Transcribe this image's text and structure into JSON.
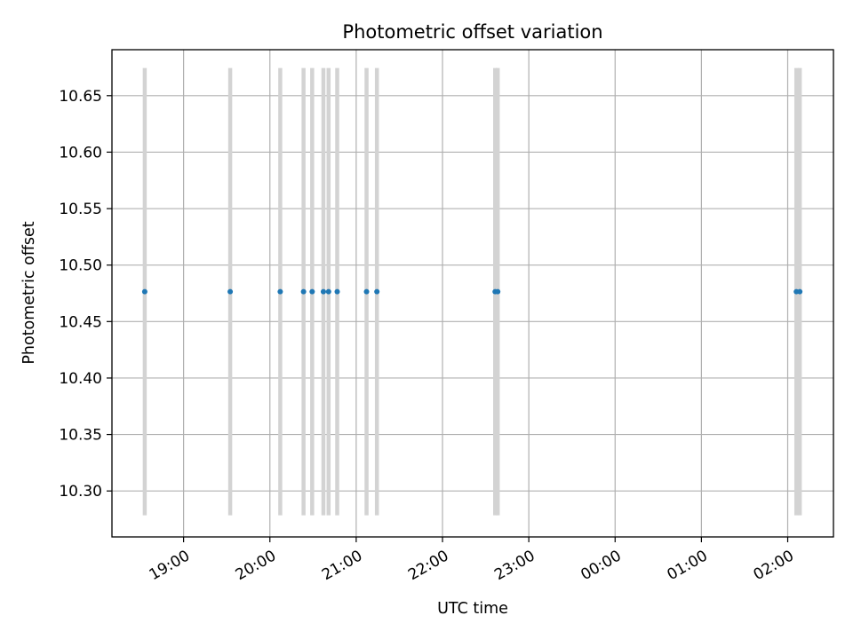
{
  "chart_data": {
    "type": "scatter",
    "title": "Photometric offset variation",
    "xlabel": "UTC time",
    "ylabel": "Photometric offset",
    "x_tick_labels": [
      "19:00",
      "20:00",
      "21:00",
      "22:00",
      "23:00",
      "00:00",
      "01:00",
      "02:00"
    ],
    "x_tick_hours": [
      19,
      20,
      21,
      22,
      23,
      24,
      25,
      26
    ],
    "xlim_hours": [
      18.17,
      26.53
    ],
    "y_ticks": [
      10.3,
      10.35,
      10.4,
      10.45,
      10.5,
      10.55,
      10.6,
      10.65
    ],
    "y_tick_labels": [
      "10.30",
      "10.35",
      "10.40",
      "10.45",
      "10.50",
      "10.55",
      "10.60",
      "10.65"
    ],
    "ylim": [
      10.2593,
      10.6907
    ],
    "grid": true,
    "marker_color": "#1f77b4",
    "errorbar_color": "#d3d3d3",
    "series": [
      {
        "x_hours": [
          18.55,
          19.54,
          20.12,
          20.39,
          20.49,
          20.62,
          20.68,
          20.78,
          21.12,
          21.24,
          22.61,
          22.64,
          26.1,
          26.14
        ],
        "y": [
          10.4765,
          10.4765,
          10.4765,
          10.4765,
          10.4765,
          10.4765,
          10.4765,
          10.4765,
          10.4765,
          10.4765,
          10.4765,
          10.4765,
          10.4765,
          10.4765
        ],
        "y_error": [
          0.198,
          0.198,
          0.198,
          0.198,
          0.198,
          0.198,
          0.198,
          0.198,
          0.198,
          0.198,
          0.198,
          0.198,
          0.198,
          0.198
        ]
      }
    ]
  }
}
